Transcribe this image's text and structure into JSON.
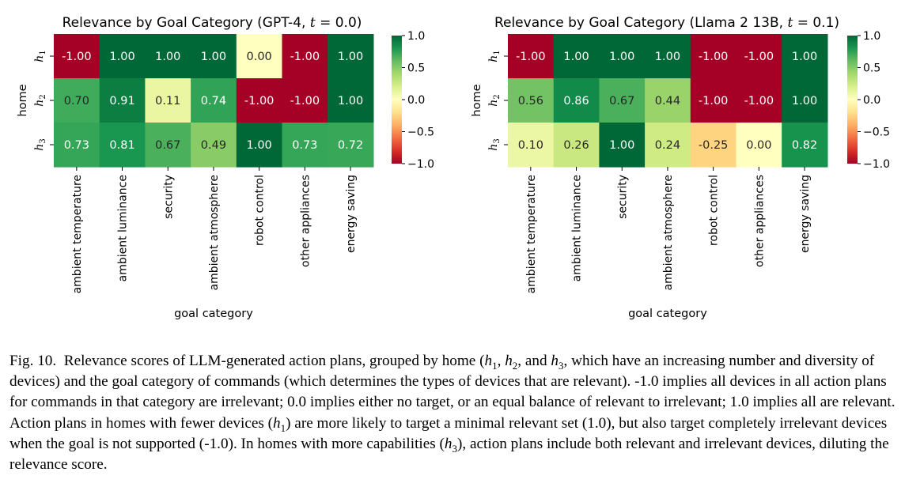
{
  "chart_data": [
    {
      "type": "heatmap",
      "title": "Relevance by Goal Category (GPT-4, t = 0.0)",
      "title_prefix": "Relevance by Goal Category (GPT-4, ",
      "title_var": "t",
      "title_suffix": " = 0.0)",
      "xlabel": "goal category",
      "ylabel": "home",
      "rows": [
        "h1",
        "h2",
        "h3"
      ],
      "columns": [
        "ambient temperature",
        "ambient luminance",
        "security",
        "ambient atmosphere",
        "robot control",
        "other appliances",
        "energy saving"
      ],
      "values": [
        [
          -1.0,
          1.0,
          1.0,
          1.0,
          0.0,
          -1.0,
          1.0
        ],
        [
          0.7,
          0.91,
          0.11,
          0.74,
          -1.0,
          -1.0,
          1.0
        ],
        [
          0.73,
          0.81,
          0.67,
          0.49,
          1.0,
          0.73,
          0.72
        ]
      ],
      "value_labels": [
        [
          "-1.00",
          "1.00",
          "1.00",
          "1.00",
          "0.00",
          "-1.00",
          "1.00"
        ],
        [
          "0.70",
          "0.91",
          "0.11",
          "0.74",
          "-1.00",
          "-1.00",
          "1.00"
        ],
        [
          "0.73",
          "0.81",
          "0.67",
          "0.49",
          "1.00",
          "0.73",
          "0.72"
        ]
      ],
      "colorbar": {
        "range": [
          -1.0,
          1.0
        ],
        "ticks": [
          "1.0",
          "0.5",
          "0.0",
          "−0.5",
          "−1.0"
        ],
        "tick_values": [
          1.0,
          0.5,
          0.0,
          -0.5,
          -1.0
        ]
      }
    },
    {
      "type": "heatmap",
      "title": "Relevance by Goal Category (Llama 2 13B, t = 0.1)",
      "title_prefix": "Relevance by Goal Category (Llama 2 13B, ",
      "title_var": "t",
      "title_suffix": " = 0.1)",
      "xlabel": "goal category",
      "ylabel": "home",
      "rows": [
        "h1",
        "h2",
        "h3"
      ],
      "columns": [
        "ambient temperature",
        "ambient luminance",
        "security",
        "ambient atmosphere",
        "robot control",
        "other appliances",
        "energy saving"
      ],
      "values": [
        [
          -1.0,
          1.0,
          1.0,
          1.0,
          -1.0,
          -1.0,
          1.0
        ],
        [
          0.56,
          0.86,
          0.67,
          0.44,
          -1.0,
          -1.0,
          1.0
        ],
        [
          0.1,
          0.26,
          1.0,
          0.24,
          -0.25,
          0.0,
          0.82
        ]
      ],
      "value_labels": [
        [
          "-1.00",
          "1.00",
          "1.00",
          "1.00",
          "-1.00",
          "-1.00",
          "1.00"
        ],
        [
          "0.56",
          "0.86",
          "0.67",
          "0.44",
          "-1.00",
          "-1.00",
          "1.00"
        ],
        [
          "0.10",
          "0.26",
          "1.00",
          "0.24",
          "-0.25",
          "0.00",
          "0.82"
        ]
      ],
      "colorbar": {
        "range": [
          -1.0,
          1.0
        ],
        "ticks": [
          "1.0",
          "0.5",
          "0.0",
          "−0.5",
          "−1.0"
        ],
        "tick_values": [
          1.0,
          0.5,
          0.0,
          -0.5,
          -1.0
        ]
      }
    }
  ],
  "colors": {
    "neg": "#a50026",
    "neg_mid": "#f46d43",
    "neg_light": "#fee08b",
    "zero": "#ffffbf",
    "pos_light": "#d9ef8b",
    "pos_mid": "#66bd63",
    "pos": "#006837"
  },
  "caption": {
    "label": "Fig. 10.",
    "text": "Relevance scores of LLM-generated action plans, grouped by home (h1, h2, and h3, which have an increasing number and diversity of devices) and the goal category of commands (which determines the types of devices that are relevant). -1.0 implies all devices in all action plans for commands in that category are irrelevant; 0.0 implies either no target, or an equal balance of relevant to irrelevant; 1.0 implies all are relevant. Action plans in homes with fewer devices (h1) are more likely to target a minimal relevant set (1.0), but also target completely irrelevant devices when the goal is not supported (-1.0). In homes with more capabilities (h3), action plans include both relevant and irrelevant devices, diluting the relevance score."
  }
}
